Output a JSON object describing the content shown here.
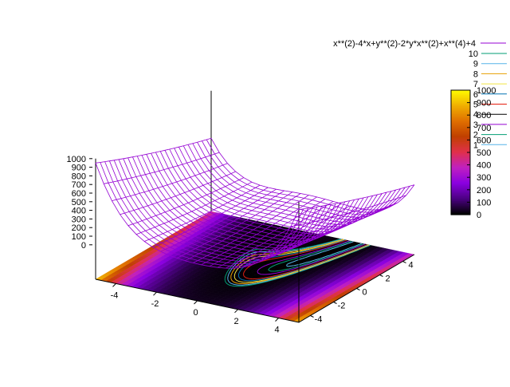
{
  "chart_data": {
    "type": "surface",
    "function": "x**(2)-4*x+y**(2)-2*y*x**(2)+x**(4)+4",
    "x_range": [
      -5,
      5
    ],
    "y_range": [
      -5,
      5
    ],
    "zlim": [
      0,
      1000
    ],
    "z_ticks": [
      "1000",
      "900",
      "800",
      "700",
      "600",
      "500",
      "400",
      "300",
      "200",
      "100",
      "0"
    ],
    "x_ticks": [
      "-4",
      "-2",
      "0",
      "2",
      "4"
    ],
    "y_ticks": [
      "-4",
      "-2",
      "0",
      "2",
      "4"
    ],
    "colorbar_ticks": [
      "1000",
      "900",
      "800",
      "700",
      "600",
      "500",
      "400",
      "300",
      "200",
      "100",
      "0"
    ],
    "contour_levels": [
      {
        "label": "10",
        "color": "#009e73"
      },
      {
        "label": "9",
        "color": "#56b4e9"
      },
      {
        "label": "8",
        "color": "#e69f00"
      },
      {
        "label": "7",
        "color": "#f0e442"
      },
      {
        "label": "6",
        "color": "#0072b2"
      },
      {
        "label": "5",
        "color": "#e51e10"
      },
      {
        "label": "4",
        "color": "#000000"
      },
      {
        "label": "3",
        "color": "#9400d3"
      },
      {
        "label": "2",
        "color": "#009e73"
      },
      {
        "label": "1",
        "color": "#56b4e9"
      }
    ],
    "surface_color": "#9400d3",
    "palette": [
      "#000000",
      "#4b0082",
      "#8a00e0",
      "#c020c0",
      "#e0304a",
      "#c04000",
      "#e07000",
      "#f0b000",
      "#ffff00"
    ]
  }
}
